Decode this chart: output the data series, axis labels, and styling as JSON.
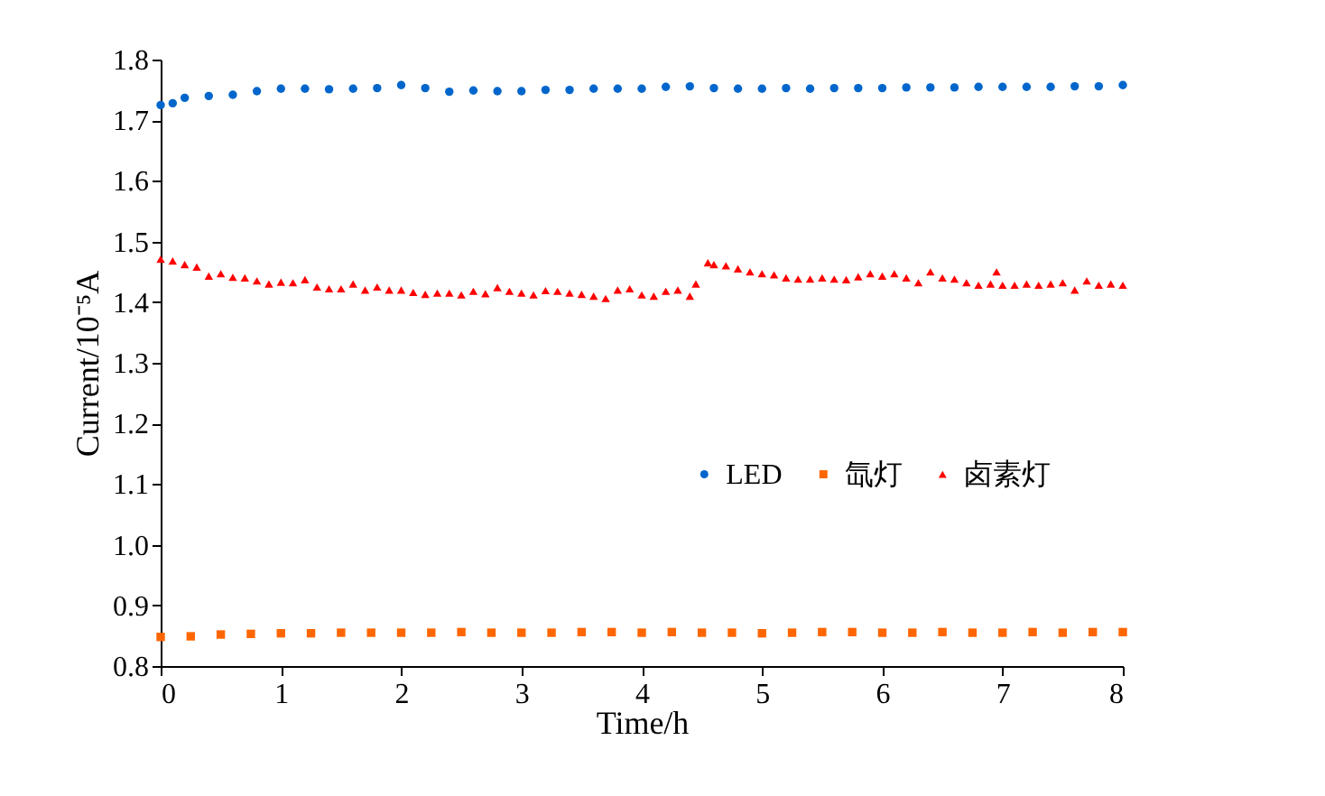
{
  "chart_data": {
    "type": "scatter",
    "xlabel": "Time/h",
    "ylabel": "Current/10⁻⁵A",
    "xlim": [
      0,
      8
    ],
    "ylim": [
      0.8,
      1.8
    ],
    "xticks": [
      0,
      1,
      2,
      3,
      4,
      5,
      6,
      7,
      8
    ],
    "yticks": [
      {
        "value": 0.8,
        "label": "0.8"
      },
      {
        "value": 0.9,
        "label": "0.9"
      },
      {
        "value": 1.0,
        "label": "1.0"
      },
      {
        "value": 1.1,
        "label": "1.1"
      },
      {
        "value": 1.2,
        "label": "1.2"
      },
      {
        "value": 1.3,
        "label": "1.3"
      },
      {
        "value": 1.4,
        "label": "1.4"
      },
      {
        "value": 1.5,
        "label": "1.5"
      },
      {
        "value": 1.6,
        "label": "1.6"
      },
      {
        "value": 1.7,
        "label": "1.7"
      },
      {
        "value": 1.8,
        "label": "1.8"
      }
    ],
    "grid": false,
    "legend": "right",
    "series": [
      {
        "name": "LED",
        "color": "#0066cc",
        "marker": "circle",
        "x": [
          0,
          0.1,
          0.2,
          0.4,
          0.6,
          0.8,
          1.0,
          1.2,
          1.4,
          1.6,
          1.8,
          2.0,
          2.2,
          2.4,
          2.6,
          2.8,
          3.0,
          3.2,
          3.4,
          3.6,
          3.8,
          4.0,
          4.2,
          4.4,
          4.6,
          4.8,
          5.0,
          5.2,
          5.4,
          5.6,
          5.8,
          6.0,
          6.2,
          6.4,
          6.6,
          6.8,
          7.0,
          7.2,
          7.4,
          7.6,
          7.8,
          8.0
        ],
        "values": [
          1.725,
          1.728,
          1.737,
          1.74,
          1.742,
          1.748,
          1.752,
          1.752,
          1.751,
          1.752,
          1.753,
          1.758,
          1.753,
          1.747,
          1.749,
          1.748,
          1.748,
          1.75,
          1.75,
          1.752,
          1.752,
          1.752,
          1.755,
          1.756,
          1.753,
          1.752,
          1.752,
          1.753,
          1.752,
          1.753,
          1.753,
          1.753,
          1.754,
          1.754,
          1.754,
          1.755,
          1.755,
          1.755,
          1.755,
          1.756,
          1.756,
          1.758
        ]
      },
      {
        "name": "氙灯",
        "color": "#ff6600",
        "marker": "square",
        "x": [
          0,
          0.25,
          0.5,
          0.75,
          1.0,
          1.25,
          1.5,
          1.75,
          2.0,
          2.25,
          2.5,
          2.75,
          3.0,
          3.25,
          3.5,
          3.75,
          4.0,
          4.25,
          4.5,
          4.75,
          5.0,
          5.25,
          5.5,
          5.75,
          6.0,
          6.25,
          6.5,
          6.75,
          7.0,
          7.25,
          7.5,
          7.75,
          8.0
        ],
        "values": [
          0.848,
          0.849,
          0.852,
          0.853,
          0.854,
          0.854,
          0.855,
          0.855,
          0.855,
          0.855,
          0.856,
          0.855,
          0.855,
          0.855,
          0.856,
          0.856,
          0.855,
          0.856,
          0.855,
          0.855,
          0.854,
          0.855,
          0.856,
          0.856,
          0.855,
          0.855,
          0.856,
          0.855,
          0.855,
          0.856,
          0.855,
          0.856,
          0.856
        ]
      },
      {
        "name": "卤素灯",
        "color": "#ff0000",
        "marker": "triangle",
        "x": [
          0,
          0.1,
          0.2,
          0.3,
          0.4,
          0.5,
          0.6,
          0.7,
          0.8,
          0.9,
          1.0,
          1.1,
          1.2,
          1.3,
          1.4,
          1.5,
          1.6,
          1.7,
          1.8,
          1.9,
          2.0,
          2.1,
          2.2,
          2.3,
          2.4,
          2.5,
          2.6,
          2.7,
          2.8,
          2.9,
          3.0,
          3.1,
          3.2,
          3.3,
          3.4,
          3.5,
          3.6,
          3.7,
          3.8,
          3.9,
          4.0,
          4.1,
          4.2,
          4.3,
          4.4,
          4.45,
          4.55,
          4.6,
          4.7,
          4.8,
          4.9,
          5.0,
          5.1,
          5.2,
          5.3,
          5.4,
          5.5,
          5.6,
          5.7,
          5.8,
          5.9,
          6.0,
          6.1,
          6.2,
          6.3,
          6.4,
          6.5,
          6.6,
          6.7,
          6.8,
          6.9,
          6.95,
          7.0,
          7.1,
          7.2,
          7.3,
          7.4,
          7.5,
          7.6,
          7.7,
          7.8,
          7.9,
          8.0
        ],
        "values": [
          1.471,
          1.468,
          1.462,
          1.458,
          1.443,
          1.447,
          1.441,
          1.44,
          1.435,
          1.43,
          1.433,
          1.432,
          1.437,
          1.425,
          1.422,
          1.422,
          1.43,
          1.42,
          1.425,
          1.42,
          1.42,
          1.416,
          1.413,
          1.415,
          1.415,
          1.412,
          1.418,
          1.414,
          1.424,
          1.418,
          1.415,
          1.412,
          1.419,
          1.418,
          1.415,
          1.413,
          1.41,
          1.406,
          1.42,
          1.422,
          1.412,
          1.41,
          1.418,
          1.42,
          1.41,
          1.43,
          1.465,
          1.462,
          1.46,
          1.455,
          1.45,
          1.447,
          1.445,
          1.44,
          1.438,
          1.438,
          1.44,
          1.438,
          1.437,
          1.442,
          1.447,
          1.443,
          1.447,
          1.44,
          1.432,
          1.45,
          1.44,
          1.438,
          1.432,
          1.428,
          1.43,
          1.45,
          1.428,
          1.428,
          1.43,
          1.428,
          1.43,
          1.432,
          1.42,
          1.435,
          1.428,
          1.43,
          1.428
        ]
      }
    ]
  }
}
